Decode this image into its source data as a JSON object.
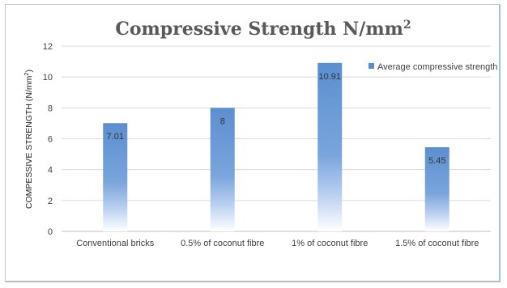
{
  "chart_data": {
    "type": "bar",
    "title": "Compressive Strength N/mm",
    "title_superscript": "2",
    "ylabel": "COMPESSIVE STRENGTH (N/mm",
    "ylabel_superscript": "2",
    "ylabel_suffix": ")",
    "xlabel": "",
    "categories": [
      "Conventional bricks",
      "0.5% of coconut fibre",
      "1% of coconut fibre",
      "1.5% of coconut fibre"
    ],
    "series": [
      {
        "name": "Average compressive strength",
        "values": [
          7.01,
          8,
          10.91,
          5.45
        ],
        "labels": [
          "7.01",
          "8",
          "10.91",
          "5.45"
        ]
      }
    ],
    "ylim": [
      0,
      12
    ],
    "yticks": [
      0,
      2,
      4,
      6,
      8,
      10,
      12
    ],
    "grid": true,
    "legend_position": "top-right",
    "colors": {
      "bar": "#5b8fd0",
      "grid": "#d9d9d9",
      "title": "#595959"
    }
  }
}
